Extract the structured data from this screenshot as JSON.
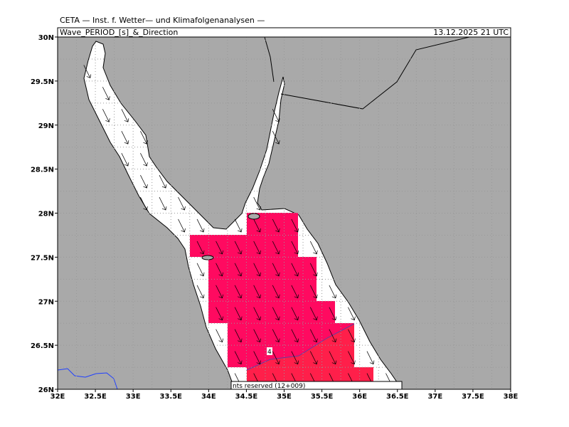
{
  "header": {
    "title": "CETA — Inst. f. Wetter— und Klimafolgenanalysen —",
    "parameter": "Wave_PERIOD_[s]_&_Direction",
    "timestamp": "13.12.2025 21 UTC"
  },
  "map": {
    "lon_labels": [
      "32E",
      "32.5E",
      "33E",
      "33.5E",
      "34E",
      "34.5E",
      "35E",
      "35.5E",
      "36E",
      "36.5E",
      "37E",
      "37.5E",
      "38E"
    ],
    "lat_labels": [
      "30N",
      "29.5N",
      "29N",
      "28.5N",
      "28N",
      "27.5N",
      "27N",
      "26.5N",
      "26N"
    ],
    "contour_label": "4",
    "copyright": "nts reserved (12+009)"
  }
}
